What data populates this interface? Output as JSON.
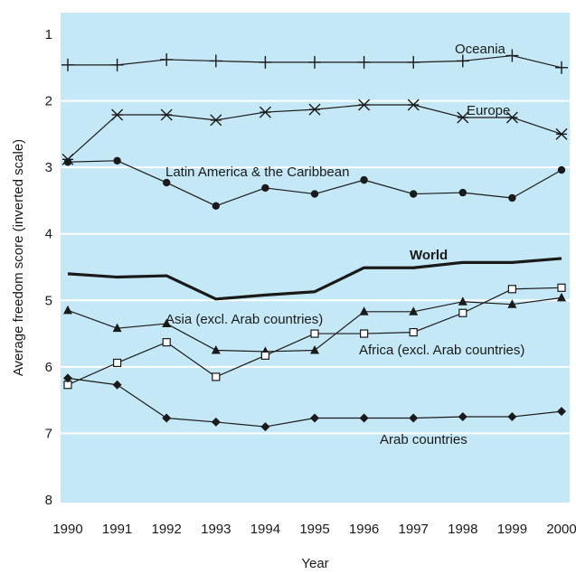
{
  "chart_data": {
    "type": "line",
    "xlabel": "Year",
    "ylabel": "Average freedom score (inverted scale)",
    "ylim": [
      1,
      8
    ],
    "y_inverted": true,
    "x": [
      1990,
      1991,
      1992,
      1993,
      1994,
      1995,
      1996,
      1997,
      1998,
      1999,
      2000
    ],
    "x_tick_labels": [
      "1990",
      "1991",
      "1992",
      "1993",
      "1994",
      "1995",
      "1996",
      "1997",
      "1998",
      "1999",
      "2000"
    ],
    "y_ticks": [
      1,
      2,
      3,
      4,
      5,
      6,
      7,
      8
    ],
    "y_tick_labels": [
      "1",
      "2",
      "3",
      "4",
      "5",
      "6",
      "7",
      "8"
    ],
    "grid": true,
    "background_color": "#c5e8f7",
    "grid_color": "#ffffff",
    "line_color": "#1a1a1a",
    "legend": "inline labels",
    "series": [
      {
        "name": "Oceania",
        "marker": "plus",
        "values": [
          1.46,
          1.46,
          1.38,
          1.4,
          1.42,
          1.42,
          1.42,
          1.42,
          1.4,
          1.32,
          1.5
        ]
      },
      {
        "name": "Europe",
        "marker": "asterisk",
        "values": [
          2.88,
          2.21,
          2.21,
          2.29,
          2.17,
          2.13,
          2.06,
          2.06,
          2.25,
          2.25,
          2.5
        ]
      },
      {
        "name": "Latin America & the Caribbean",
        "marker": "circle",
        "values": [
          2.92,
          2.9,
          3.23,
          3.58,
          3.31,
          3.4,
          3.19,
          3.4,
          3.38,
          3.46,
          3.04
        ]
      },
      {
        "name": "World",
        "marker": "none",
        "bold": true,
        "values": [
          4.6,
          4.65,
          4.63,
          4.98,
          4.92,
          4.87,
          4.51,
          4.51,
          4.43,
          4.43,
          4.37
        ]
      },
      {
        "name": "Asia (excl. Arab countries)",
        "marker": "triangle",
        "values": [
          5.15,
          5.42,
          5.35,
          5.75,
          5.77,
          5.75,
          5.17,
          5.17,
          5.02,
          5.06,
          4.96
        ]
      },
      {
        "name": "Africa (excl. Arab countries)",
        "marker": "square",
        "values": [
          6.27,
          5.94,
          5.63,
          6.15,
          5.83,
          5.5,
          5.5,
          5.48,
          5.19,
          4.83,
          4.81
        ]
      },
      {
        "name": "Arab countries",
        "marker": "diamond",
        "values": [
          6.17,
          6.27,
          6.77,
          6.83,
          6.9,
          6.77,
          6.77,
          6.77,
          6.75,
          6.75,
          6.67
        ]
      }
    ]
  }
}
